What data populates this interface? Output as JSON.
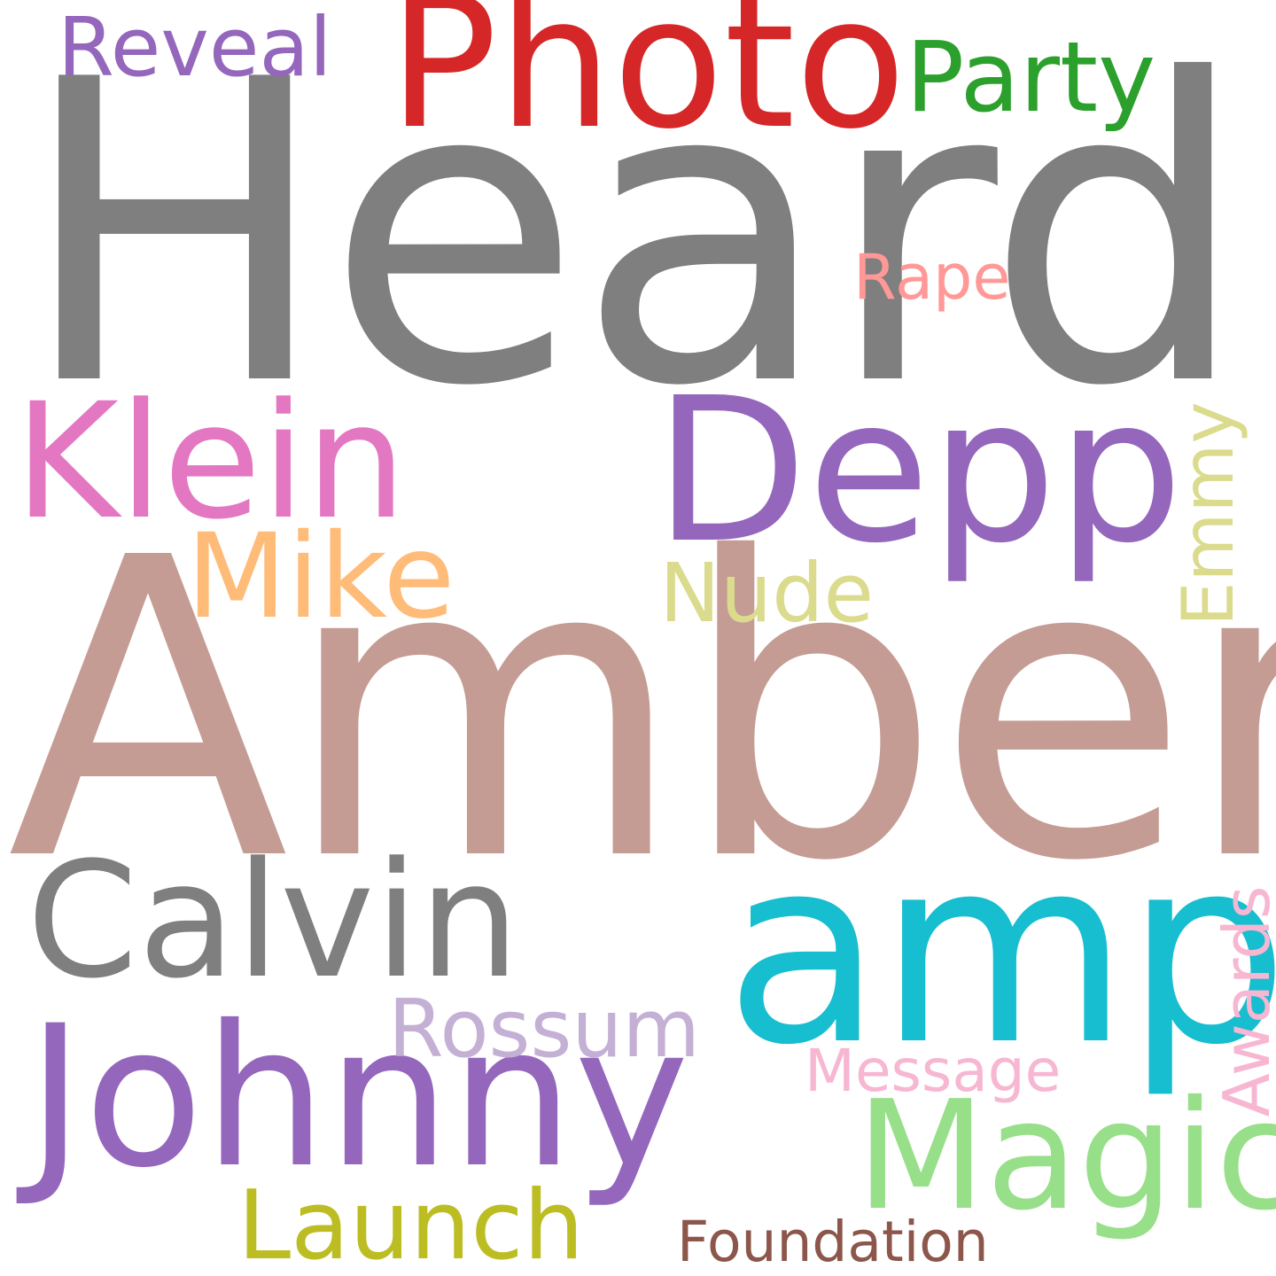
{
  "words": {
    "heard": {
      "text": "Heard",
      "color": "#7f7f7f"
    },
    "amber": {
      "text": "Amber",
      "color": "#c49c94"
    },
    "photo": {
      "text": "Photo",
      "color": "#d62728"
    },
    "depp": {
      "text": "Depp",
      "color": "#9467bd"
    },
    "amp": {
      "text": "amp",
      "color": "#17becf"
    },
    "johnny": {
      "text": "Johnny",
      "color": "#9467bd"
    },
    "calvin": {
      "text": "Calvin",
      "color": "#7f7f7f"
    },
    "klein": {
      "text": "Klein",
      "color": "#e377c2"
    },
    "magic": {
      "text": "Magic",
      "color": "#98df8a"
    },
    "mike": {
      "text": "Mike",
      "color": "#ffbb78"
    },
    "reveal": {
      "text": "Reveal",
      "color": "#9467bd"
    },
    "party": {
      "text": "Party",
      "color": "#2ca02c"
    },
    "nude": {
      "text": "Nude",
      "color": "#dbdb8d"
    },
    "emmy": {
      "text": "Emmy",
      "color": "#dbdb8d"
    },
    "rossum": {
      "text": "Rossum",
      "color": "#c5b0d5"
    },
    "launch": {
      "text": "Launch",
      "color": "#bcbd22"
    },
    "awards": {
      "text": "Awards",
      "color": "#f7b6d2"
    },
    "rape": {
      "text": "Rape",
      "color": "#ff9896"
    },
    "message": {
      "text": "Message",
      "color": "#f7b6d2"
    },
    "foundation": {
      "text": "Foundation",
      "color": "#8c564b"
    }
  }
}
